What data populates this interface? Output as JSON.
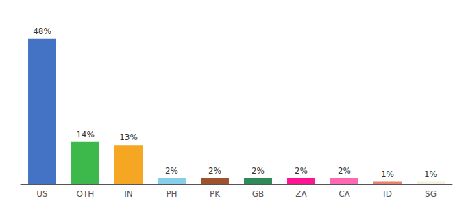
{
  "chart_data": {
    "type": "bar",
    "categories": [
      "US",
      "OTH",
      "IN",
      "PH",
      "PK",
      "GB",
      "ZA",
      "CA",
      "ID",
      "SG"
    ],
    "values": [
      48,
      14,
      13,
      2,
      2,
      2,
      2,
      2,
      1,
      1
    ],
    "value_labels": [
      "48%",
      "14%",
      "13%",
      "2%",
      "2%",
      "2%",
      "2%",
      "2%",
      "1%",
      "1%"
    ],
    "colors": [
      "#4472c4",
      "#3db84a",
      "#f5a623",
      "#87ceeb",
      "#a0522d",
      "#2e8b57",
      "#ff1493",
      "#ff69b4",
      "#e8826e",
      "#f5f0dc"
    ],
    "ylim": [
      0,
      54
    ],
    "data_labels": true,
    "tick_labels": "x",
    "grid": false
  }
}
